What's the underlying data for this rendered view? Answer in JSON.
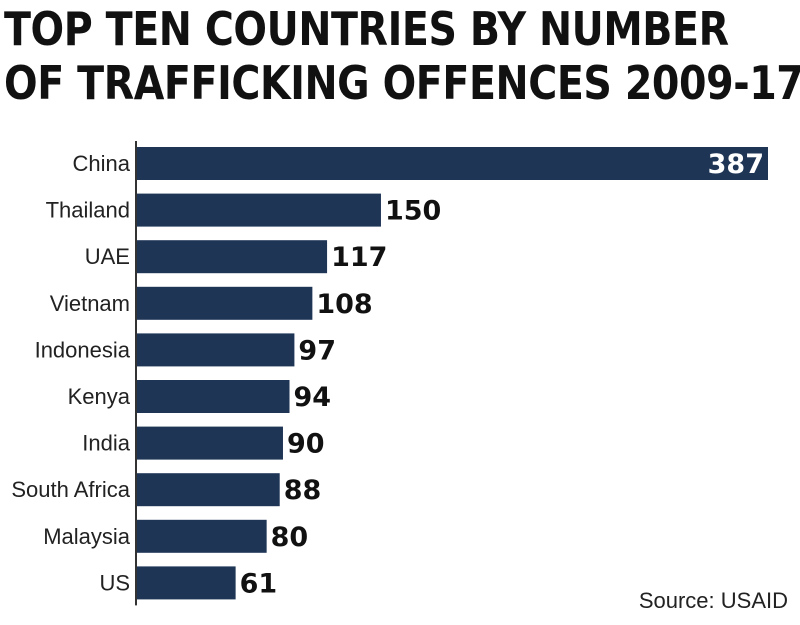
{
  "chart_data": {
    "type": "bar",
    "orientation": "horizontal",
    "title_lines": [
      "TOP TEN COUNTRIES BY NUMBER",
      "OF TRAFFICKING OFFENCES 2009-17"
    ],
    "categories": [
      "China",
      "Thailand",
      "UAE",
      "Vietnam",
      "Indonesia",
      "Kenya",
      "India",
      "South Africa",
      "Malaysia",
      "US"
    ],
    "values": [
      387,
      150,
      117,
      108,
      97,
      94,
      90,
      88,
      80,
      61
    ],
    "xlim": [
      0,
      387
    ],
    "bar_color": "#1f3556",
    "grid": false,
    "legend": "none",
    "source": "Source: USAID"
  }
}
